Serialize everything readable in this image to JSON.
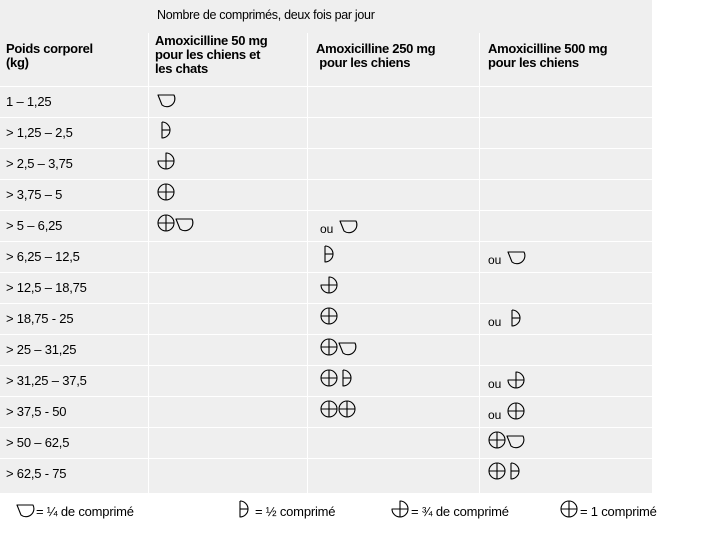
{
  "supertitle": "Nombre de comprimés, deux fois par jour",
  "headers": {
    "weight": "Poids corporel\n(kg)",
    "col50": "Amoxicilline 50 mg\npour les chiens et\nles chats",
    "col250": "Amoxicilline 250 mg\n pour les chiens",
    "col500": "Amoxicilline 500 mg\npour les chiens"
  },
  "or_label": "ou",
  "rows": [
    {
      "weight": "1 – 1,25",
      "d50": "1/4",
      "d250": null,
      "d500": null
    },
    {
      "weight": "> 1,25 – 2,5",
      "d50": "1/2",
      "d250": null,
      "d500": null
    },
    {
      "weight": "> 2,5 – 3,75",
      "d50": "3/4",
      "d250": null,
      "d500": null
    },
    {
      "weight": "> 3,75 – 5",
      "d50": "1",
      "d250": null,
      "d500": null
    },
    {
      "weight": "> 5 – 6,25",
      "d50": "1 1/4",
      "d250": "ou 1/4",
      "d500": null
    },
    {
      "weight": "> 6,25 – 12,5",
      "d50": null,
      "d250": "1/2",
      "d500": "ou 1/4"
    },
    {
      "weight": "> 12,5 – 18,75",
      "d50": null,
      "d250": "3/4",
      "d500": null
    },
    {
      "weight": "> 18,75 - 25",
      "d50": null,
      "d250": "1",
      "d500": "ou 1/2"
    },
    {
      "weight": "> 25 – 31,25",
      "d50": null,
      "d250": "1 1/4",
      "d500": null
    },
    {
      "weight": "> 31,25 – 37,5",
      "d50": null,
      "d250": "1 1/2",
      "d500": "ou 3/4"
    },
    {
      "weight": "> 37,5 - 50",
      "d50": null,
      "d250": "2",
      "d500": "ou 1"
    },
    {
      "weight": "> 50 – 62,5",
      "d50": null,
      "d250": null,
      "d500": "1 1/4"
    },
    {
      "weight": "> 62,5 - 75",
      "d50": null,
      "d250": null,
      "d500": "1 1/2"
    }
  ],
  "legend": [
    {
      "icon": "quarter",
      "text": "= ¼ de comprimé"
    },
    {
      "icon": "half",
      "text": "= ½ comprimé"
    },
    {
      "icon": "three-quarter",
      "text": "= ¾ de comprimé"
    },
    {
      "icon": "whole",
      "text": "= 1 comprimé"
    }
  ]
}
